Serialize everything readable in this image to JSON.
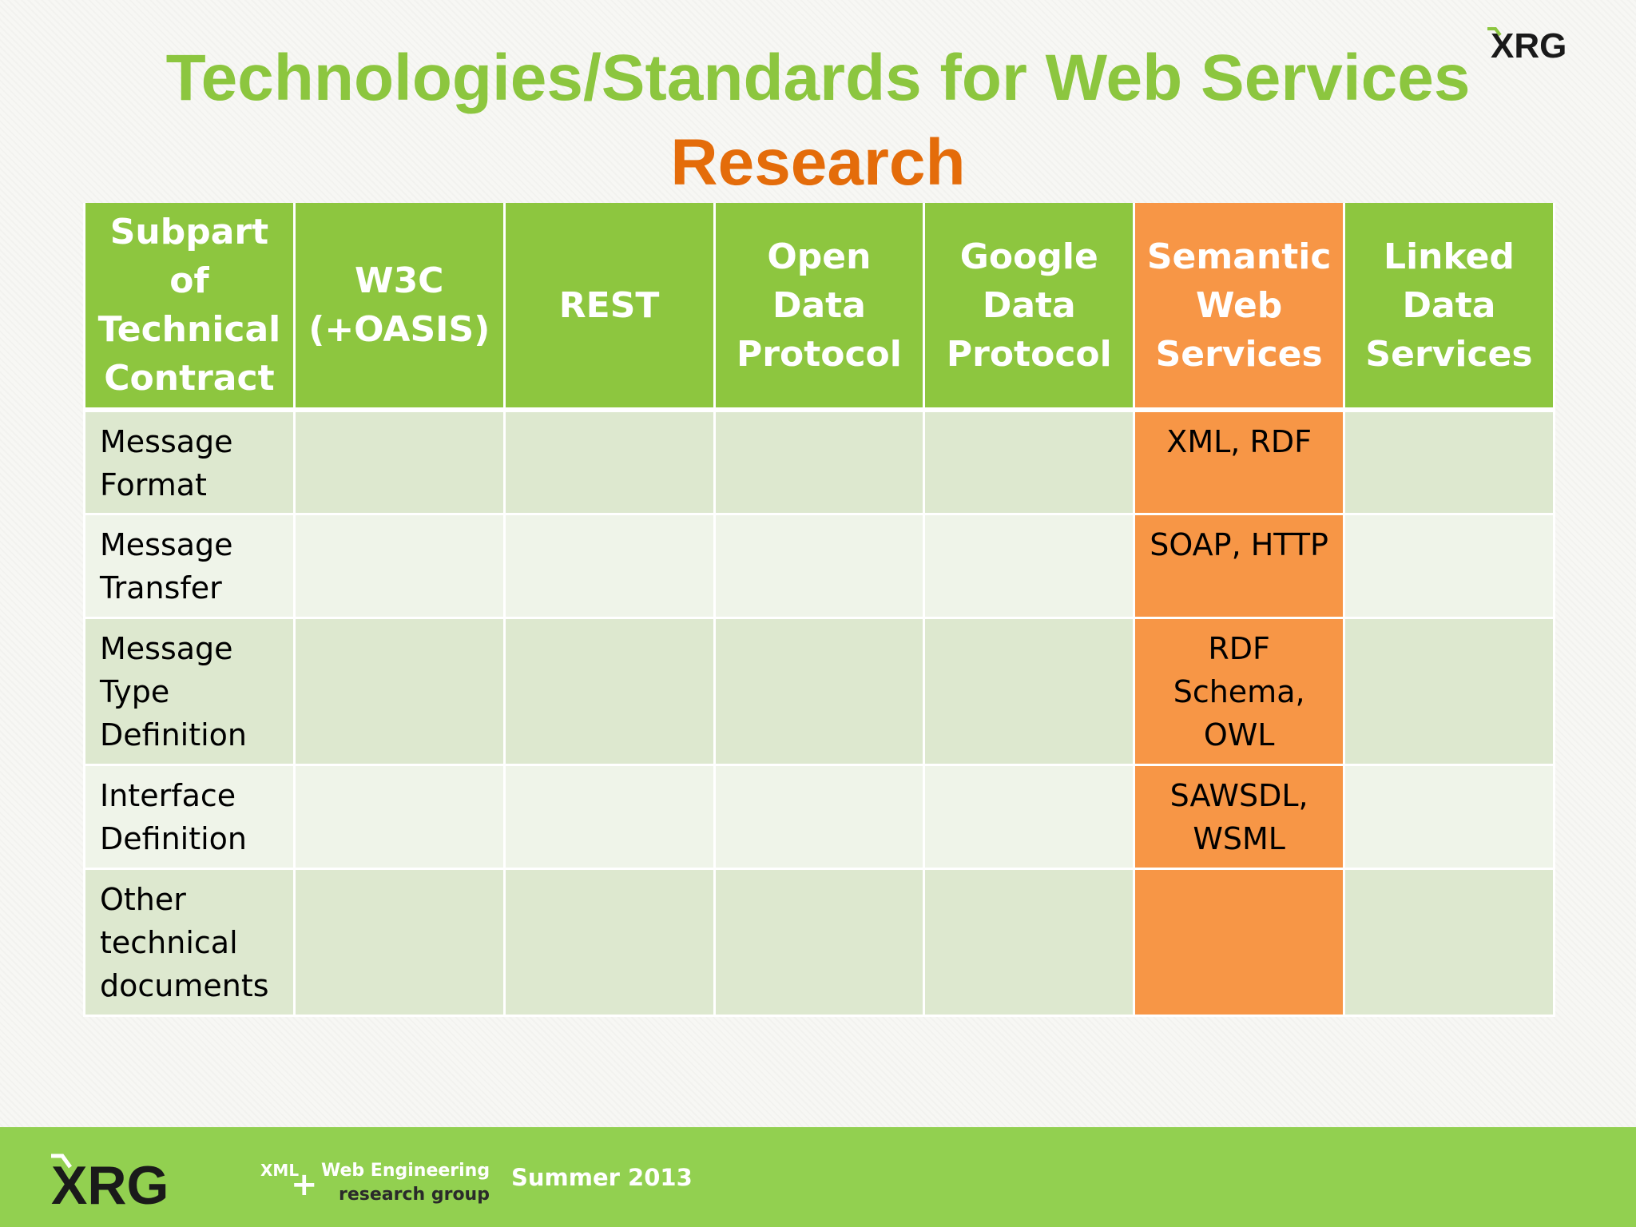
{
  "slide": {
    "title": "Technologies/Standards for Web Services",
    "subtitle": "Research"
  },
  "colors": {
    "title_green": "#8cc63f",
    "subtitle_orange": "#e46c0a",
    "header_green": "#8dc63f",
    "highlight_orange": "#f79646",
    "row_dark": "#dde8cf",
    "row_light": "#eff4e9",
    "footer_green": "#92d050"
  },
  "table": {
    "headers": [
      "Subpart of Technical Contract",
      "W3C (+OASIS)",
      "REST",
      "Open Data Protocol",
      "Google Data Protocol",
      "Semantic Web Services",
      "Linked Data Services"
    ],
    "highlight_column": 5,
    "rows": [
      {
        "label": "Message Format",
        "cells": [
          "",
          "",
          "",
          "",
          "XML, RDF",
          ""
        ]
      },
      {
        "label": "Message Transfer",
        "cells": [
          "",
          "",
          "",
          "",
          "SOAP, HTTP",
          ""
        ]
      },
      {
        "label": "Message Type Definition",
        "cells": [
          "",
          "",
          "",
          "",
          "RDF Schema, OWL",
          ""
        ]
      },
      {
        "label": "Interface Definition",
        "cells": [
          "",
          "",
          "",
          "",
          "SAWSDL, WSML",
          ""
        ]
      },
      {
        "label": "Other technical documents",
        "cells": [
          "",
          "",
          "",
          "",
          "",
          ""
        ]
      }
    ]
  },
  "logo": {
    "text": "XRG"
  },
  "footer": {
    "logo_text": "XRG",
    "tag_xml": "XML",
    "plus": "+",
    "tag_web": "Web Engineering",
    "tag_group": "research group",
    "date": "Summer 2013"
  }
}
